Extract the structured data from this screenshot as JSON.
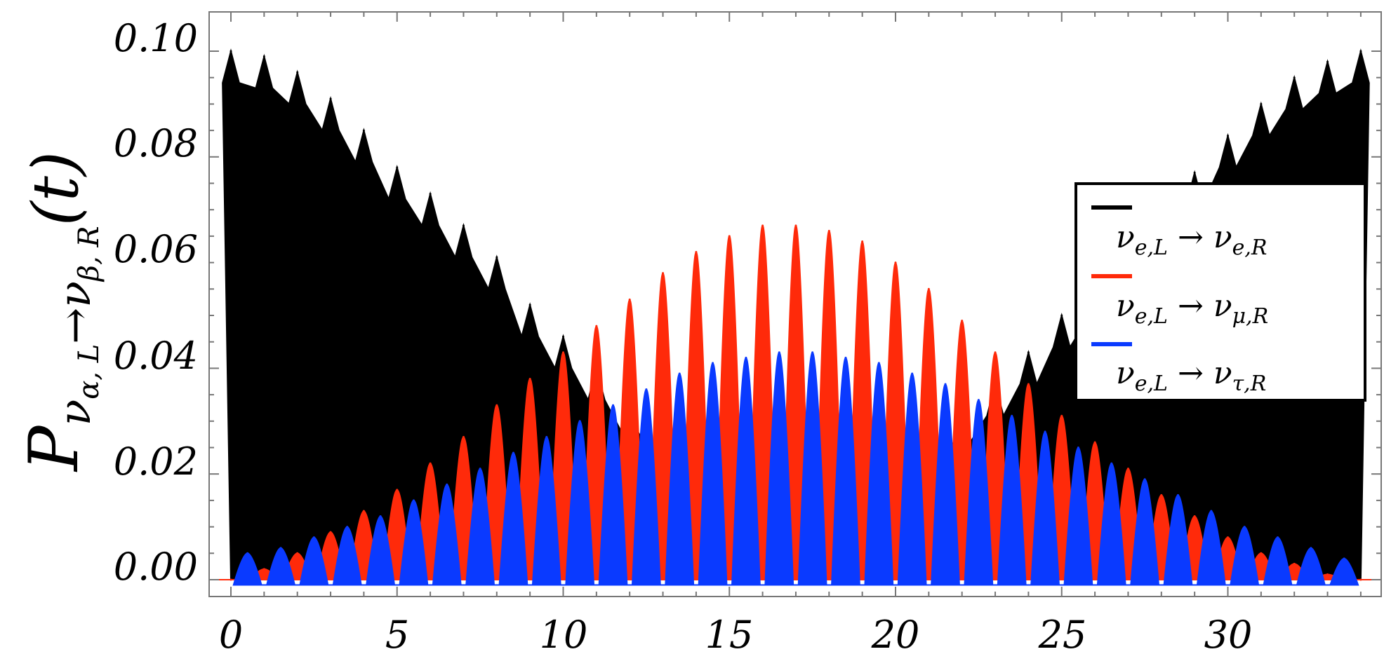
{
  "chart_data": {
    "type": "area",
    "xlim": [
      0,
      34.3
    ],
    "ylim": [
      -0.006,
      0.105
    ],
    "x_ticks": [
      "0",
      "5",
      "10",
      "15",
      "20",
      "25",
      "30"
    ],
    "y_ticks": [
      "0.00",
      "0.02",
      "0.04",
      "0.06",
      "0.08",
      "0.10"
    ],
    "ylabel": {
      "main": "P",
      "sub": "ν",
      "subsub": "α, L",
      "arrow": "→",
      "target": "ν",
      "targetsub": "β, R",
      "arg": "(t)"
    },
    "xlabel": "",
    "grid": false,
    "legend": {
      "placement": "right"
    },
    "series": [
      {
        "name": "νe,L → νe,R",
        "legend_parts": [
          "ν",
          "e,L",
          " → ",
          "ν",
          "e,R"
        ],
        "color": "#000000",
        "peaks_x": [
          0.0,
          1.0,
          2.0,
          3.0,
          4.0,
          5.0,
          6.0,
          7.0,
          8.0,
          9.0,
          10.0,
          11.0,
          12.0,
          13.0,
          14.0,
          15.0,
          16.0,
          17.0,
          18.0,
          19.0,
          20.0,
          21.0,
          22.0,
          23.0,
          24.0,
          25.0,
          26.0,
          27.0,
          28.0,
          29.0,
          30.0,
          31.0,
          32.0,
          33.0,
          34.0
        ],
        "peaks_y": [
          0.1,
          0.099,
          0.096,
          0.091,
          0.085,
          0.078,
          0.073,
          0.067,
          0.061,
          0.052,
          0.046,
          0.04,
          0.034,
          0.028,
          0.023,
          0.02,
          0.018,
          0.018,
          0.019,
          0.021,
          0.024,
          0.028,
          0.032,
          0.037,
          0.043,
          0.05,
          0.055,
          0.062,
          0.069,
          0.077,
          0.084,
          0.09,
          0.095,
          0.098,
          0.1
        ],
        "floor_y": 0.0
      },
      {
        "name": "νe,L → νμ,R",
        "legend_parts": [
          "ν",
          "e,L",
          " → ",
          "ν",
          "μ,R"
        ],
        "color": "#ff2a0a",
        "peaks_x": [
          0.0,
          1.0,
          2.0,
          3.0,
          4.0,
          5.0,
          6.0,
          7.0,
          8.0,
          9.0,
          10.0,
          11.0,
          12.0,
          13.0,
          14.0,
          15.0,
          16.0,
          17.0,
          18.0,
          19.0,
          20.0,
          21.0,
          22.0,
          23.0,
          24.0,
          25.0,
          26.0,
          27.0,
          28.0,
          29.0,
          30.0,
          31.0,
          32.0,
          33.0,
          34.0
        ],
        "peaks_y": [
          0.0,
          0.002,
          0.005,
          0.009,
          0.013,
          0.017,
          0.022,
          0.027,
          0.033,
          0.038,
          0.043,
          0.048,
          0.053,
          0.058,
          0.062,
          0.065,
          0.067,
          0.067,
          0.066,
          0.064,
          0.06,
          0.055,
          0.049,
          0.043,
          0.037,
          0.031,
          0.026,
          0.021,
          0.016,
          0.012,
          0.008,
          0.005,
          0.003,
          0.001,
          0.0
        ],
        "floor_y": 0.0
      },
      {
        "name": "νe,L → ντ,R",
        "legend_parts": [
          "ν",
          "e,L",
          " → ",
          "ν",
          "τ,R"
        ],
        "color": "#0a3aff",
        "peaks_x": [
          0.5,
          1.5,
          2.5,
          3.5,
          4.5,
          5.5,
          6.5,
          7.5,
          8.5,
          9.5,
          10.5,
          11.5,
          12.5,
          13.5,
          14.5,
          15.5,
          16.5,
          17.5,
          18.5,
          19.5,
          20.5,
          21.5,
          22.5,
          23.5,
          24.5,
          25.5,
          26.5,
          27.5,
          28.5,
          29.5,
          30.5,
          31.5,
          32.5,
          33.5
        ],
        "peaks_y": [
          0.005,
          0.006,
          0.008,
          0.01,
          0.012,
          0.015,
          0.018,
          0.021,
          0.024,
          0.027,
          0.03,
          0.033,
          0.036,
          0.039,
          0.041,
          0.042,
          0.043,
          0.043,
          0.042,
          0.041,
          0.039,
          0.037,
          0.034,
          0.031,
          0.028,
          0.025,
          0.022,
          0.019,
          0.016,
          0.013,
          0.01,
          0.008,
          0.006,
          0.004
        ],
        "floor_y": -0.001
      }
    ]
  }
}
